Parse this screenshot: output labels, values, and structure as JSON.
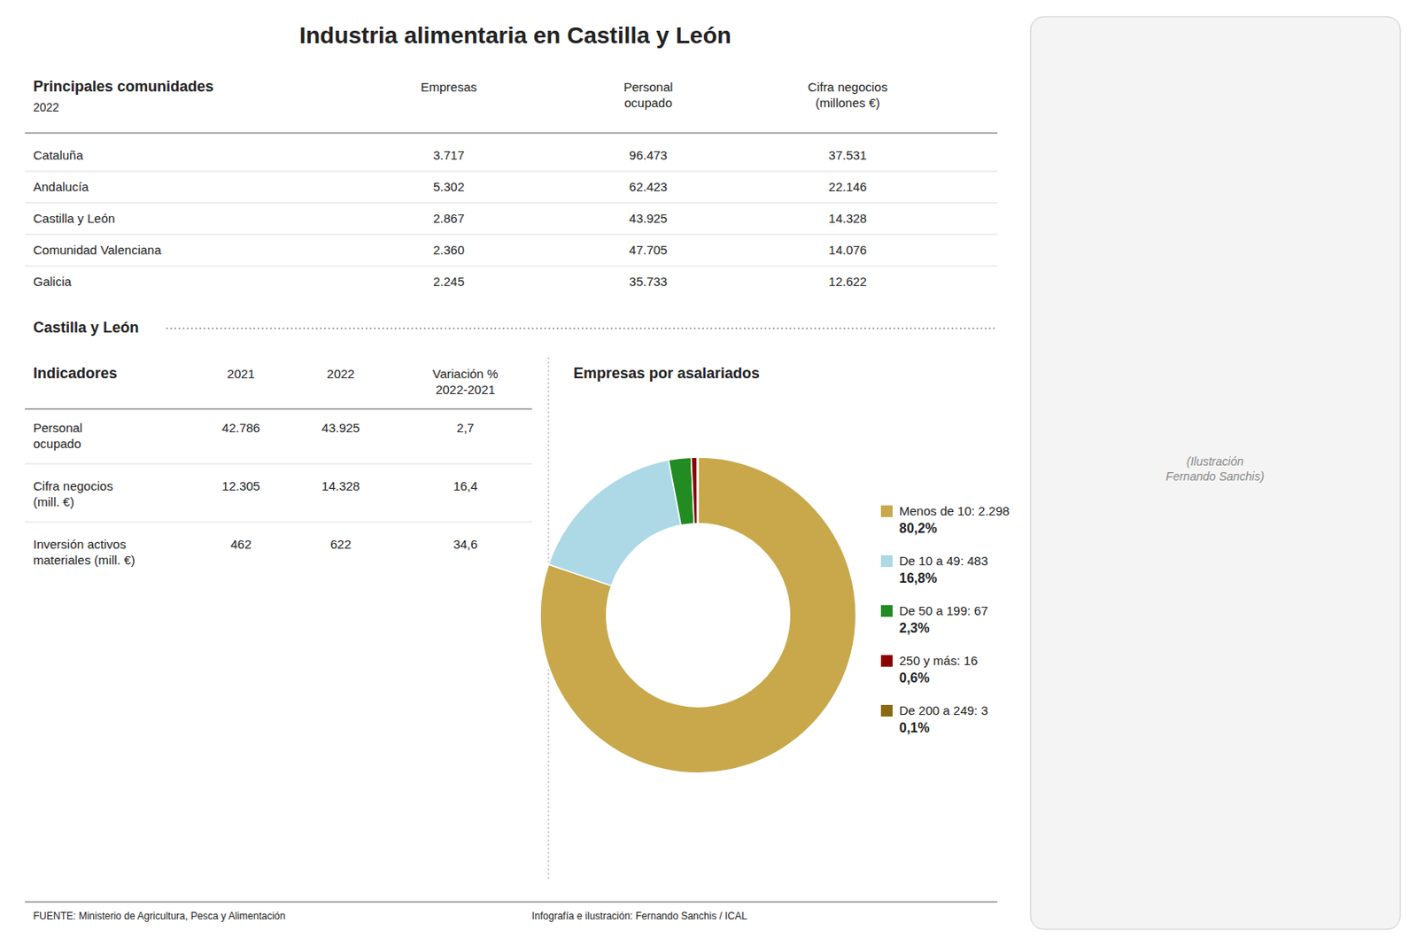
{
  "title": "Industria alimentaria en Castilla y León",
  "annotations": [
    "Castilla y León",
    "FUENTE: Ministerio de Agricultura, Pesca y Alimentación",
    "Infografía e ilustración: Fernando Sanchis / ICAL",
    "(Ilustración\nFernando Sanchis)"
  ],
  "chart_data": [
    {
      "type": "table",
      "title": "Principales comunidades",
      "subtitle": "2022",
      "columns": [
        "Empresas",
        "Personal\nocupado",
        "Cifra negocios\n(millones €)"
      ],
      "categories": [
        "Cataluña",
        "Andalucía",
        "Castilla y León",
        "Comunidad Valenciana",
        "Galicia"
      ],
      "cells": [
        [
          "3.717",
          "96.473",
          "37.531"
        ],
        [
          "5.302",
          "62.423",
          "22.146"
        ],
        [
          "2.867",
          "43.925",
          "14.328"
        ],
        [
          "2.360",
          "47.705",
          "14.076"
        ],
        [
          "2.245",
          "35.733",
          "12.622"
        ]
      ]
    },
    {
      "type": "table",
      "title": "Indicadores",
      "columns": [
        "2021",
        "2022",
        "Variación %\n2022-2021"
      ],
      "categories": [
        "Personal\nocupado",
        "Cifra negocios\n(mill. €)",
        "Inversión activos\nmateriales (mill. €)"
      ],
      "cells": [
        [
          "42.786",
          "43.925",
          "2,7"
        ],
        [
          "12.305",
          "14.328",
          "16,4"
        ],
        [
          "462",
          "622",
          "34,6"
        ]
      ]
    },
    {
      "type": "donut",
      "title": "Empresas por asalariados",
      "categories": [
        "Menos de 10: 2.298",
        "De 10 a 49: 483",
        "De 50 a 199: 67",
        "250 y más: 16",
        "De 200 a 249: 3"
      ],
      "values": [
        80.2,
        16.8,
        2.3,
        0.6,
        0.1
      ],
      "value_labels": [
        "80,2%",
        "16,8%",
        "2,3%",
        "0,6%",
        "0,1%"
      ],
      "colors": [
        "#c8a84b",
        "#add8e6",
        "#228B22",
        "#8B0000",
        "#8B6914"
      ],
      "data_labels": true
    }
  ]
}
